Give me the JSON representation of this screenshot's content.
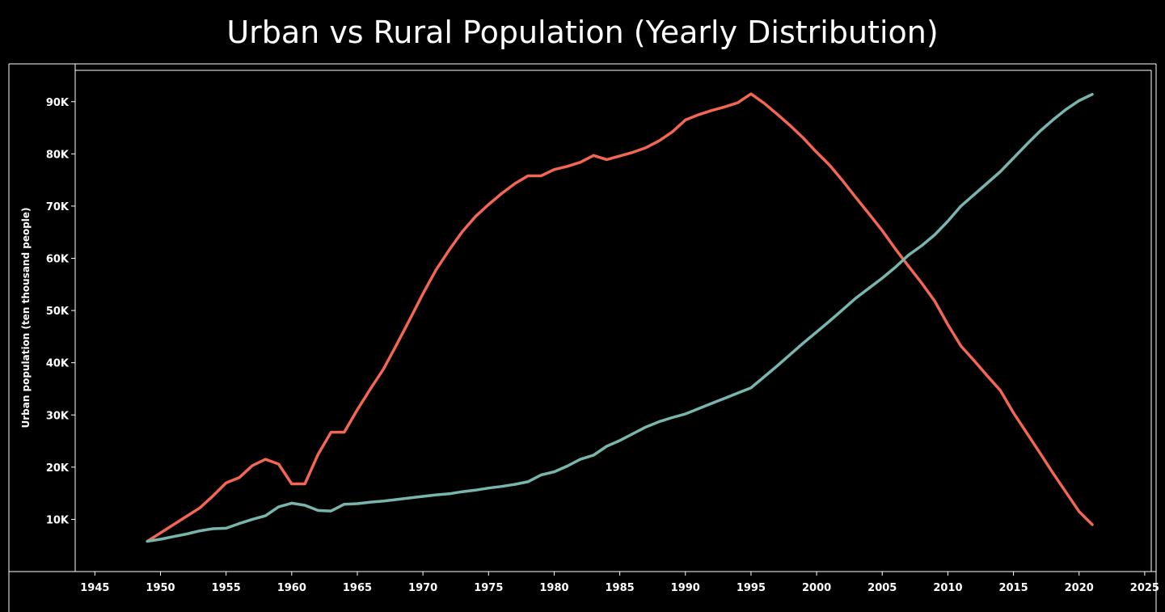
{
  "chart_data": {
    "type": "line",
    "title": "Urban vs Rural Population (Yearly Distribution)",
    "ylabel": "Urban population (ten thousand people)",
    "xlabel": "",
    "xlim": [
      1943.5,
      2025.5
    ],
    "ylim": [
      0,
      96000
    ],
    "x_ticks": [
      1945,
      1950,
      1955,
      1960,
      1965,
      1970,
      1975,
      1980,
      1985,
      1990,
      1995,
      2000,
      2005,
      2010,
      2015,
      2020,
      2025
    ],
    "y_ticks": [
      10000,
      20000,
      30000,
      40000,
      50000,
      60000,
      70000,
      80000,
      90000
    ],
    "y_tick_labels": [
      "10K",
      "20K",
      "30K",
      "40K",
      "50K",
      "60K",
      "70K",
      "80K",
      "90K"
    ],
    "grid": false,
    "legend": "none",
    "series": [
      {
        "color": "#f26653",
        "x": [
          1949,
          1950,
          1951,
          1952,
          1953,
          1954,
          1955,
          1956,
          1957,
          1958,
          1959,
          1960,
          1961,
          1962,
          1963,
          1964,
          1965,
          1966,
          1967,
          1968,
          1969,
          1970,
          1971,
          1972,
          1973,
          1974,
          1975,
          1976,
          1977,
          1978,
          1979,
          1980,
          1981,
          1982,
          1983,
          1984,
          1985,
          1986,
          1987,
          1988,
          1989,
          1990,
          1991,
          1992,
          1993,
          1994,
          1995,
          1996,
          1997,
          1998,
          1999,
          2000,
          2001,
          2002,
          2003,
          2004,
          2005,
          2006,
          2007,
          2008,
          2009,
          2010,
          2011,
          2012,
          2013,
          2014,
          2015,
          2016,
          2017,
          2018,
          2019,
          2020,
          2021
        ],
        "y": [
          5800,
          7400,
          9000,
          10600,
          12200,
          14500,
          17000,
          18000,
          20300,
          21500,
          20600,
          16800,
          16800,
          22400,
          26700,
          26700,
          31000,
          35000,
          38800,
          43500,
          48300,
          53200,
          57800,
          61600,
          65100,
          68000,
          70300,
          72400,
          74300,
          75800,
          75800,
          77000,
          77600,
          78400,
          79700,
          78900,
          79600,
          80300,
          81200,
          82500,
          84200,
          86500,
          87500,
          88300,
          89000,
          89800,
          91500,
          89700,
          87600,
          85400,
          83000,
          80300,
          77800,
          74800,
          71600,
          68500,
          65300,
          61800,
          58500,
          55300,
          51800,
          47300,
          43200,
          40400,
          37500,
          34700,
          30400,
          26600,
          22800,
          18900,
          15200,
          11500,
          9000
        ]
      },
      {
        "color": "#78b5ae",
        "x": [
          1949,
          1950,
          1951,
          1952,
          1953,
          1954,
          1955,
          1956,
          1957,
          1958,
          1959,
          1960,
          1961,
          1962,
          1963,
          1964,
          1965,
          1966,
          1967,
          1968,
          1969,
          1970,
          1971,
          1972,
          1973,
          1974,
          1975,
          1976,
          1977,
          1978,
          1979,
          1980,
          1981,
          1982,
          1983,
          1984,
          1985,
          1986,
          1987,
          1988,
          1989,
          1990,
          1991,
          1992,
          1993,
          1994,
          1995,
          1996,
          1997,
          1998,
          1999,
          2000,
          2001,
          2002,
          2003,
          2004,
          2005,
          2006,
          2007,
          2008,
          2009,
          2010,
          2011,
          2012,
          2013,
          2014,
          2015,
          2016,
          2017,
          2018,
          2019,
          2020,
          2021
        ],
        "y": [
          5800,
          6200,
          6700,
          7200,
          7800,
          8200,
          8300,
          9200,
          10000,
          10700,
          12400,
          13100,
          12700,
          11700,
          11600,
          12900,
          13000,
          13300,
          13500,
          13800,
          14100,
          14400,
          14700,
          14900,
          15300,
          15600,
          16000,
          16300,
          16700,
          17200,
          18500,
          19100,
          20200,
          21500,
          22300,
          24000,
          25100,
          26400,
          27700,
          28700,
          29500,
          30200,
          31200,
          32200,
          33200,
          34200,
          35200,
          37300,
          39400,
          41600,
          43800,
          45900,
          48000,
          50200,
          52400,
          54300,
          56200,
          58300,
          60600,
          62400,
          64500,
          67100,
          70000,
          72200,
          74400,
          76600,
          79200,
          81800,
          84300,
          86500,
          88500,
          90200,
          91400
        ]
      }
    ]
  }
}
